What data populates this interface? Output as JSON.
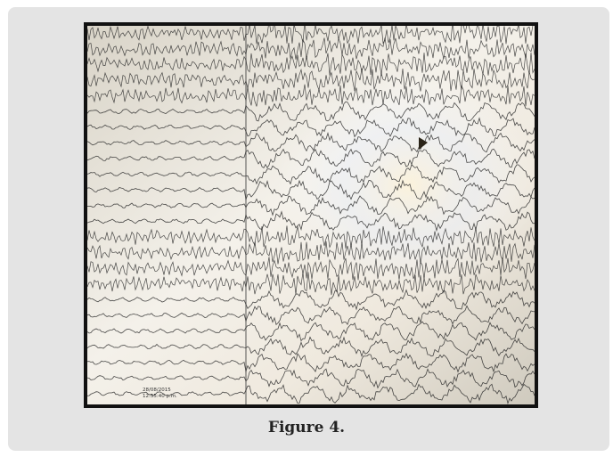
{
  "figure": {
    "caption": "Figure 4.",
    "image_subject": "EEG recording photographed from monitor",
    "timestamp_text": [
      "28/08/2015",
      "12:55:40 p.m."
    ]
  },
  "colors": {
    "card_background": "#e4e4e4",
    "screen_background": "#ece8df",
    "trace_color": "#2b2b2b",
    "frame_color": "#111111"
  }
}
